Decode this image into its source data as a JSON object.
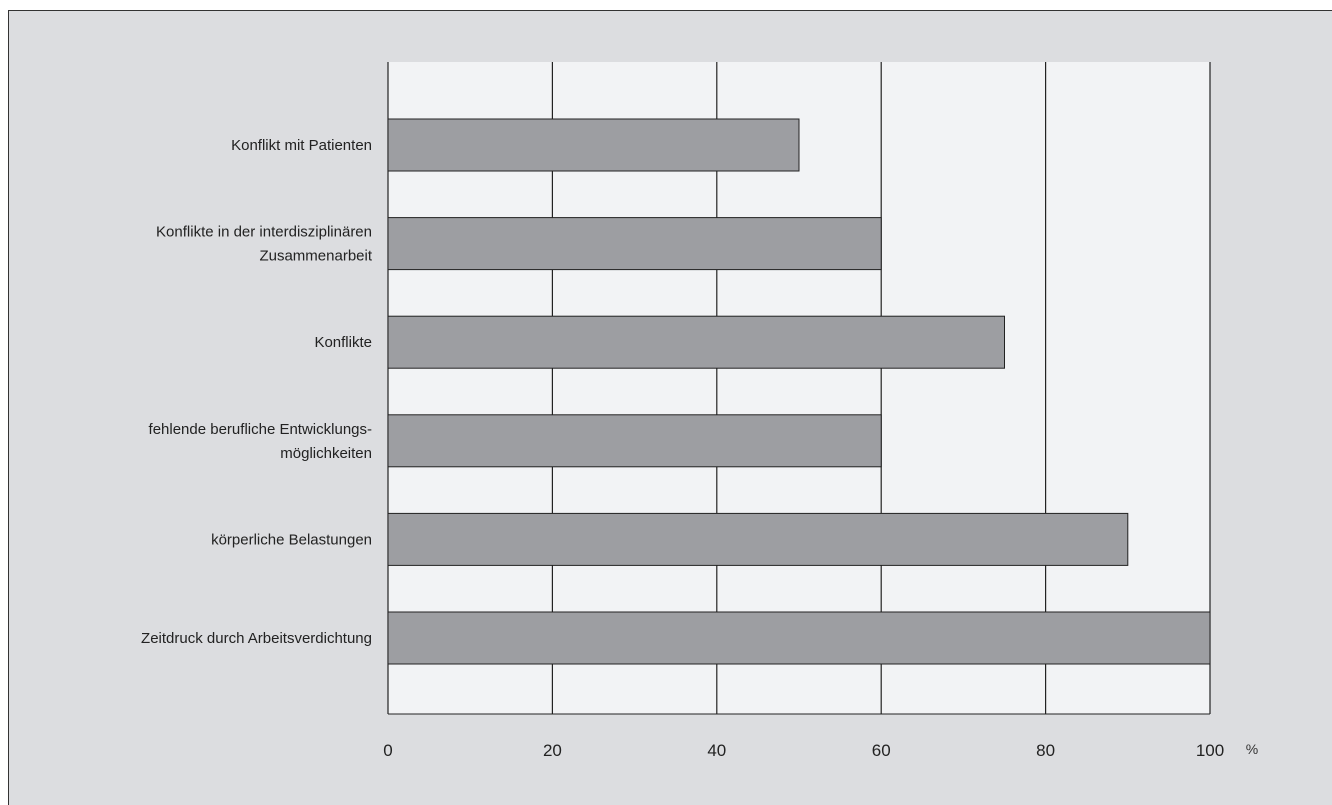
{
  "chart_data": {
    "type": "bar",
    "orientation": "horizontal",
    "categories": [
      [
        "Konflikt mit Patienten"
      ],
      [
        "Konflikte in der interdisziplinären",
        "Zusammenarbeit"
      ],
      [
        "Konflikte"
      ],
      [
        "fehlende berufliche Entwicklungs-",
        "möglichkeiten"
      ],
      [
        "körperliche Belastungen"
      ],
      [
        "Zeitdruck durch Arbeitsverdichtung"
      ]
    ],
    "values": [
      50,
      60,
      75,
      60,
      90,
      100
    ],
    "xlim": [
      0,
      100
    ],
    "xticks": [
      0,
      20,
      40,
      60,
      80,
      100
    ],
    "xtick_labels": [
      "0",
      "20",
      "40",
      "60",
      "80",
      "100"
    ],
    "unit": "%",
    "grid": "vertical",
    "colors": {
      "bar": "#9d9ea2",
      "plot_background": "#f2f3f5",
      "frame_background": "#dcdde0",
      "lines": "#222222"
    }
  }
}
